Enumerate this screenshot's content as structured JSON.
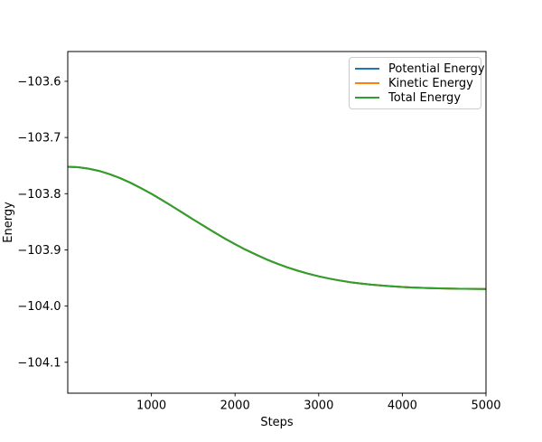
{
  "figure": {
    "background": "#ffffff"
  },
  "chart_data": {
    "type": "line",
    "title": "",
    "xlabel": "Steps",
    "ylabel": "Energy",
    "xlim": [
      0,
      5000
    ],
    "ylim": [
      -104.155,
      -103.547
    ],
    "grid": false,
    "legend_position": "upper-right",
    "series_overlap": true,
    "xticks": [
      {
        "value": 1000,
        "label": "1000"
      },
      {
        "value": 2000,
        "label": "2000"
      },
      {
        "value": 3000,
        "label": "3000"
      },
      {
        "value": 4000,
        "label": "4000"
      },
      {
        "value": 5000,
        "label": "5000"
      }
    ],
    "yticks": [
      {
        "value": -103.6,
        "label": "−103.6"
      },
      {
        "value": -103.7,
        "label": "−103.7"
      },
      {
        "value": -103.8,
        "label": "−103.8"
      },
      {
        "value": -103.9,
        "label": "−103.9"
      },
      {
        "value": -104.0,
        "label": "−104.0"
      },
      {
        "value": -104.1,
        "label": "−104.1"
      }
    ],
    "x": [
      0,
      125,
      250,
      375,
      500,
      625,
      750,
      875,
      1000,
      1125,
      1250,
      1375,
      1500,
      1625,
      1750,
      1875,
      2000,
      2125,
      2250,
      2375,
      2500,
      2625,
      2750,
      2875,
      3000,
      3125,
      3250,
      3375,
      3500,
      3625,
      3750,
      3875,
      4000,
      4125,
      4250,
      4375,
      4500,
      4625,
      4750,
      4875,
      5000
    ],
    "series": [
      {
        "name": "Potential Energy",
        "color": "#1f77b4",
        "values": [
          -103.752,
          -103.7529,
          -103.7554,
          -103.7595,
          -103.7652,
          -103.7723,
          -103.7806,
          -103.79,
          -103.8002,
          -103.8111,
          -103.8225,
          -103.8341,
          -103.8458,
          -103.8573,
          -103.8686,
          -103.8795,
          -103.8898,
          -103.8995,
          -103.9085,
          -103.9168,
          -103.9243,
          -103.9311,
          -103.9371,
          -103.9424,
          -103.947,
          -103.951,
          -103.9544,
          -103.9574,
          -103.9598,
          -103.9618,
          -103.9635,
          -103.9649,
          -103.966,
          -103.9669,
          -103.9676,
          -103.9682,
          -103.9686,
          -103.969,
          -103.9692,
          -103.9694,
          -103.9696
        ]
      },
      {
        "name": "Kinetic Energy",
        "color": "#ff7f0e",
        "values": [
          -103.752,
          -103.7529,
          -103.7554,
          -103.7595,
          -103.7652,
          -103.7723,
          -103.7806,
          -103.79,
          -103.8002,
          -103.8111,
          -103.8225,
          -103.8341,
          -103.8458,
          -103.8573,
          -103.8686,
          -103.8795,
          -103.8898,
          -103.8995,
          -103.9085,
          -103.9168,
          -103.9243,
          -103.9311,
          -103.9371,
          -103.9424,
          -103.947,
          -103.951,
          -103.9544,
          -103.9574,
          -103.9598,
          -103.9618,
          -103.9635,
          -103.9649,
          -103.966,
          -103.9669,
          -103.9676,
          -103.9682,
          -103.9686,
          -103.969,
          -103.9692,
          -103.9694,
          -103.9696
        ]
      },
      {
        "name": "Total Energy",
        "color": "#2ca02c",
        "values": [
          -103.752,
          -103.7529,
          -103.7554,
          -103.7595,
          -103.7652,
          -103.7723,
          -103.7806,
          -103.79,
          -103.8002,
          -103.8111,
          -103.8225,
          -103.8341,
          -103.8458,
          -103.8573,
          -103.8686,
          -103.8795,
          -103.8898,
          -103.8995,
          -103.9085,
          -103.9168,
          -103.9243,
          -103.9311,
          -103.9371,
          -103.9424,
          -103.947,
          -103.951,
          -103.9544,
          -103.9574,
          -103.9598,
          -103.9618,
          -103.9635,
          -103.9649,
          -103.966,
          -103.9669,
          -103.9676,
          -103.9682,
          -103.9686,
          -103.969,
          -103.9692,
          -103.9694,
          -103.9696
        ]
      }
    ]
  }
}
